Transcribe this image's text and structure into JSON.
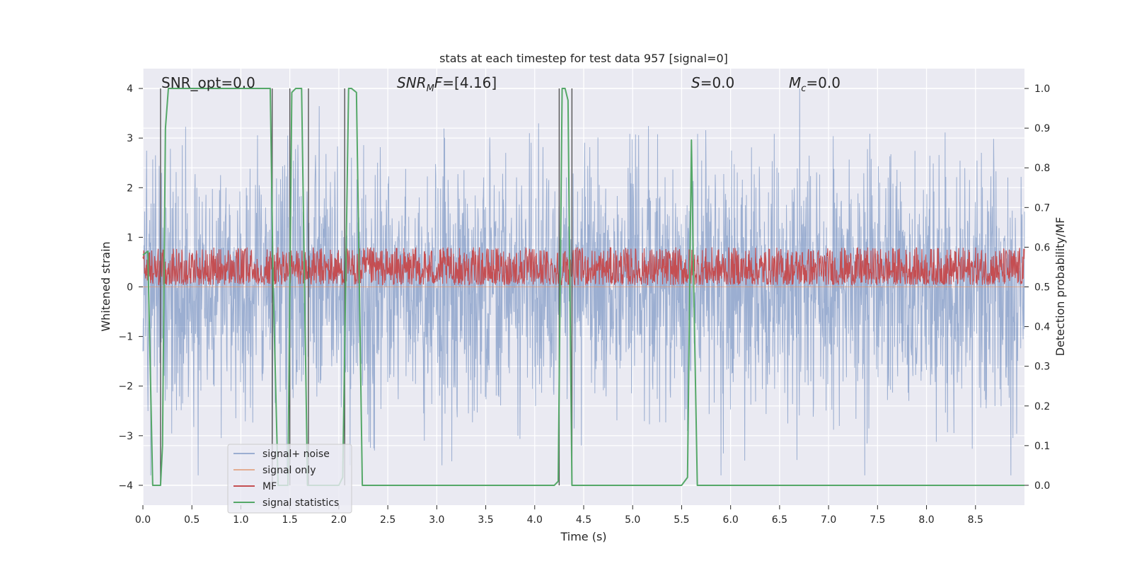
{
  "chart_data": {
    "type": "line",
    "title": "stats at each timestep for test data 957 [signal=0]",
    "xlabel": "Time (s)",
    "ylabel_left": "Whitened strain",
    "ylabel_right": "Detection probability/MF",
    "xlim": [
      0.0,
      9.0
    ],
    "ylim_left": [
      -4.4,
      4.4
    ],
    "ylim_right": [
      -0.05,
      1.05
    ],
    "xticks": [
      "0.0",
      "0.5",
      "1.0",
      "1.5",
      "2.0",
      "2.5",
      "3.0",
      "3.5",
      "4.0",
      "4.5",
      "5.0",
      "5.5",
      "6.0",
      "6.5",
      "7.0",
      "7.5",
      "8.0",
      "8.5"
    ],
    "yticks_left": [
      "4",
      "3",
      "2",
      "1",
      "0",
      "−1",
      "−2",
      "−3",
      "−4"
    ],
    "yticks_right": [
      "1.0",
      "0.9",
      "0.8",
      "0.7",
      "0.6",
      "0.5",
      "0.4",
      "0.3",
      "0.2",
      "0.1",
      "0.0"
    ],
    "grid": true,
    "legend_position": "lower-left",
    "annotations": {
      "snr_opt": "SNR_opt=0.0",
      "snr_mf": "=[4.16]",
      "s": "=0.0",
      "mc": "=0.0"
    },
    "series": [
      {
        "name": "signal+ noise",
        "color": "#4c72b0",
        "kind": "noise",
        "amplitude_typical": [
          -2.5,
          2.6
        ],
        "amplitude_peak": [
          -3.8,
          4.0
        ]
      },
      {
        "name": "signal only",
        "color": "#dd8452",
        "kind": "flat",
        "value": 0.0
      },
      {
        "name": "MF",
        "color": "#c44e52",
        "axis": "right",
        "kind": "band",
        "range": [
          0.505,
          0.6
        ]
      },
      {
        "name": "signal statistics",
        "color": "#55a868",
        "axis": "right",
        "x": [
          0.0,
          0.05,
          0.1,
          0.13,
          0.18,
          0.2,
          0.23,
          0.26,
          0.3,
          1.0,
          1.3,
          1.33,
          1.38,
          1.45,
          1.48,
          1.52,
          1.56,
          1.62,
          1.68,
          1.72,
          1.78,
          2.0,
          2.04,
          2.1,
          2.13,
          2.18,
          2.24,
          2.3,
          3.0,
          3.3,
          4.2,
          4.24,
          4.28,
          4.31,
          4.34,
          4.38,
          4.42,
          4.5,
          5.0,
          5.5,
          5.56,
          5.6,
          5.62,
          5.66,
          5.72,
          6.0,
          7.0,
          8.0,
          9.0
        ],
        "y": [
          0.58,
          0.59,
          0.0,
          0.0,
          0.0,
          0.1,
          0.9,
          1.0,
          1.0,
          1.0,
          1.0,
          0.5,
          0.0,
          0.0,
          0.0,
          0.99,
          1.0,
          1.0,
          0.0,
          0.0,
          0.0,
          0.0,
          0.02,
          1.0,
          1.0,
          0.99,
          0.0,
          0.0,
          0.0,
          0.0,
          0.0,
          0.01,
          1.0,
          1.0,
          0.97,
          0.0,
          0.0,
          0.0,
          0.0,
          0.0,
          0.02,
          0.87,
          0.55,
          0.0,
          0.0,
          0.0,
          0.0,
          0.0,
          0.0
        ]
      }
    ],
    "vertical_markers": [
      0.18,
      1.32,
      1.5,
      1.69,
      2.06,
      4.25,
      4.38
    ]
  }
}
